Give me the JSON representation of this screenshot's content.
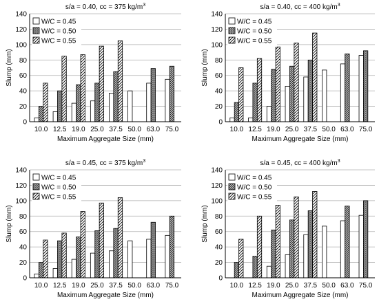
{
  "chart_data": [
    {
      "type": "bar",
      "title": "s/a = 0.40, cc = 375 kg/m",
      "title_sup": "3",
      "xlabel": "Maximum Aggregate Size (mm)",
      "ylabel": "Slump (mm)",
      "ylim": [
        0,
        140
      ],
      "yticks": [
        0,
        20,
        40,
        60,
        80,
        100,
        120,
        140
      ],
      "grid": true,
      "legend": "top-left",
      "categories": [
        "10.0",
        "12.5",
        "19.0",
        "25.0",
        "37.5",
        "50.0",
        "63.0",
        "75.0"
      ],
      "series": [
        {
          "name": "W/C = 0.45",
          "pattern": "white",
          "values": [
            5,
            13,
            24,
            27,
            37,
            40,
            50,
            55
          ]
        },
        {
          "name": "W/C = 0.50",
          "pattern": "crosshatch",
          "values": [
            20,
            40,
            48,
            50,
            65,
            null,
            69,
            72
          ]
        },
        {
          "name": "W/C = 0.55",
          "pattern": "diagonal",
          "values": [
            50,
            85,
            87,
            98,
            105,
            null,
            null,
            null
          ]
        }
      ]
    },
    {
      "type": "bar",
      "title": "s/a = 0.40, cc = 400 kg/m",
      "title_sup": "3",
      "xlabel": "Maximum Aggregate Size (mm)",
      "ylabel": "Slump (mm)",
      "ylim": [
        0,
        140
      ],
      "yticks": [
        0,
        20,
        40,
        60,
        80,
        100,
        120,
        140
      ],
      "grid": true,
      "legend": "top-left",
      "categories": [
        "10.0",
        "12.5",
        "19.0",
        "25.0",
        "37.5",
        "50.0",
        "63.0",
        "75.0"
      ],
      "series": [
        {
          "name": "W/C = 0.45",
          "pattern": "white",
          "values": [
            5,
            5,
            20,
            46,
            58,
            67,
            75,
            86
          ]
        },
        {
          "name": "W/C = 0.50",
          "pattern": "crosshatch",
          "values": [
            25,
            50,
            68,
            72,
            80,
            null,
            88,
            92
          ]
        },
        {
          "name": "W/C = 0.55",
          "pattern": "diagonal",
          "values": [
            70,
            82,
            97,
            102,
            115,
            null,
            null,
            null
          ]
        }
      ]
    },
    {
      "type": "bar",
      "title": "s/a = 0.45, cc = 375 kg/m",
      "title_sup": "3",
      "xlabel": "Maximum Aggregate Size (mm)",
      "ylabel": "Slump (mm)",
      "ylim": [
        0,
        140
      ],
      "yticks": [
        0,
        20,
        40,
        60,
        80,
        100,
        120,
        140
      ],
      "grid": true,
      "legend": "top-left",
      "categories": [
        "10.0",
        "12.5",
        "19.0",
        "25.0",
        "37.5",
        "50.0",
        "63.0",
        "75.0"
      ],
      "series": [
        {
          "name": "W/C = 0.45",
          "pattern": "white",
          "values": [
            5,
            12,
            24,
            32,
            35,
            48,
            50,
            55
          ]
        },
        {
          "name": "W/C = 0.50",
          "pattern": "crosshatch",
          "values": [
            20,
            48,
            53,
            61,
            64,
            null,
            72,
            80
          ]
        },
        {
          "name": "W/C = 0.55",
          "pattern": "diagonal",
          "values": [
            49,
            58,
            86,
            97,
            104,
            null,
            null,
            null
          ]
        }
      ]
    },
    {
      "type": "bar",
      "title": "s/a = 0.45, cc = 400 kg/m",
      "title_sup": "3",
      "xlabel": "Maximum Aggregate Size (mm)",
      "ylabel": "Slump (mm)",
      "ylim": [
        0,
        140
      ],
      "yticks": [
        0,
        20,
        40,
        60,
        80,
        100,
        120,
        140
      ],
      "grid": true,
      "legend": "top-left",
      "categories": [
        "10.0",
        "12.5",
        "19.0",
        "25.0",
        "37.5",
        "50.0",
        "63.0",
        "75.0"
      ],
      "series": [
        {
          "name": "W/C = 0.45",
          "pattern": "white",
          "values": [
            null,
            null,
            15,
            30,
            56,
            67,
            74,
            81
          ]
        },
        {
          "name": "W/C = 0.50",
          "pattern": "crosshatch",
          "values": [
            20,
            28,
            62,
            75,
            87,
            null,
            93,
            100
          ]
        },
        {
          "name": "W/C = 0.55",
          "pattern": "diagonal",
          "values": [
            50,
            80,
            94,
            105,
            112,
            null,
            null,
            null
          ]
        }
      ]
    }
  ]
}
